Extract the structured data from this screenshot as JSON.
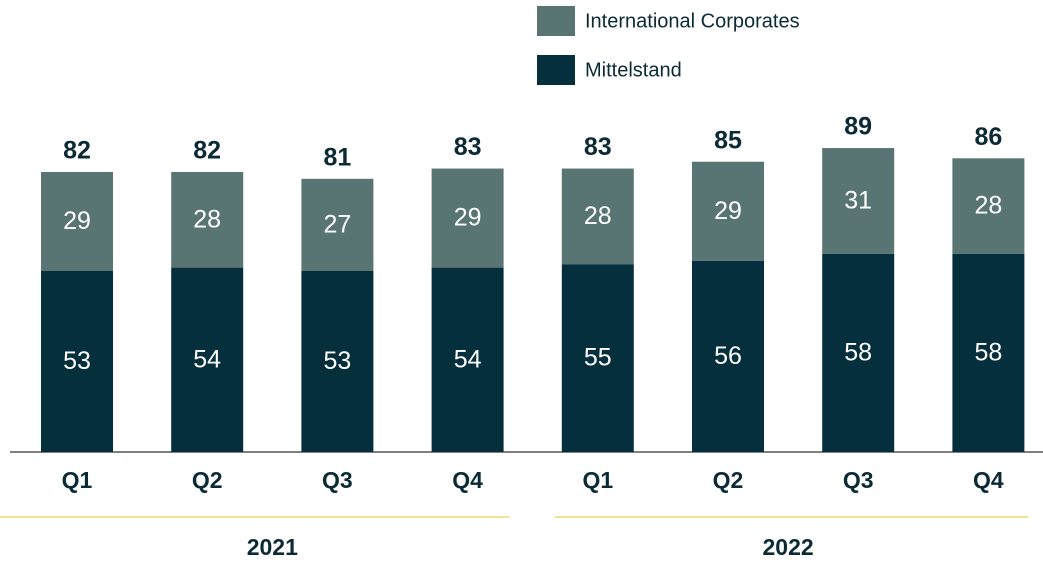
{
  "chart_data": {
    "type": "stacked-bar",
    "categories": [
      "Q1",
      "Q2",
      "Q3",
      "Q4",
      "Q1",
      "Q2",
      "Q3",
      "Q4"
    ],
    "groups": [
      "2021",
      "2022"
    ],
    "series": [
      {
        "name": "Mittelstand",
        "color": "#062f3e",
        "values": [
          53,
          54,
          53,
          54,
          55,
          56,
          58,
          58
        ]
      },
      {
        "name": "International Corporates",
        "color": "#587473",
        "values": [
          29,
          28,
          27,
          29,
          28,
          29,
          31,
          28
        ]
      }
    ],
    "totals": [
      82,
      82,
      81,
      83,
      83,
      85,
      89,
      86
    ]
  }
}
